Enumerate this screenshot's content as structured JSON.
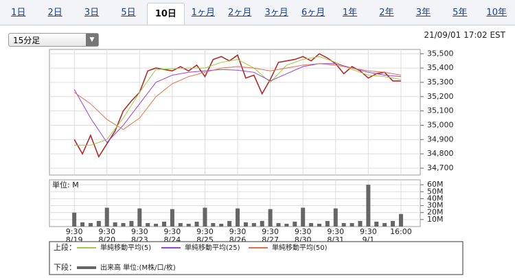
{
  "tabs": [
    "1日",
    "2日",
    "3日",
    "5日",
    "10日",
    "1ヶ月",
    "2ヶ月",
    "3ヶ月",
    "6ヶ月",
    "1年",
    "2年",
    "3年",
    "5年",
    "10年"
  ],
  "selected_tab": 4,
  "dropdown": "15分足",
  "timestamp": "21/09/01 17:02 EST",
  "chart_data": [
    {
      "type": "line",
      "panel_label": "上段：",
      "xlim": [
        -0.76,
        10.59
      ],
      "xticks": [
        {
          "value": 0,
          "label": "9:30"
        },
        {
          "value": 1,
          "label": "9:30"
        },
        {
          "value": 2,
          "label": "9:30"
        },
        {
          "value": 3,
          "label": "9:30"
        },
        {
          "value": 4,
          "label": "9:30"
        },
        {
          "value": 5,
          "label": "9:30"
        },
        {
          "value": 6,
          "label": "9:30"
        },
        {
          "value": 7,
          "label": "9:30"
        },
        {
          "value": 8,
          "label": "9:30"
        },
        {
          "value": 9,
          "label": "9:30"
        },
        {
          "value": 10,
          "label": "16:00"
        }
      ],
      "x_dates": [
        "8/19",
        "8/20",
        "8/23",
        "8/24",
        "8/25",
        "8/26",
        "8/27",
        "8/30",
        "8/31",
        "9/1"
      ],
      "ylim": [
        34652,
        35530
      ],
      "yticks": [
        {
          "value": 34700,
          "label": "34,700"
        },
        {
          "value": 34800,
          "label": "34,800"
        },
        {
          "value": 34900,
          "label": "34,900"
        },
        {
          "value": 35000,
          "label": "35,000"
        },
        {
          "value": 35100,
          "label": "35,100"
        },
        {
          "value": 35200,
          "label": "35,200"
        },
        {
          "value": 35300,
          "label": "35,300"
        },
        {
          "value": 35400,
          "label": "35,400"
        },
        {
          "value": 35500,
          "label": "35,500"
        }
      ],
      "grid": true,
      "price": {
        "color": "#b02a2a",
        "x": [
          0,
          0.25,
          0.5,
          0.75,
          1,
          1.25,
          1.5,
          1.75,
          2,
          2.25,
          2.5,
          2.75,
          3,
          3.25,
          3.5,
          3.75,
          4,
          4.25,
          4.5,
          4.75,
          5,
          5.25,
          5.5,
          5.75,
          6,
          6.25,
          6.5,
          6.75,
          7,
          7.25,
          7.5,
          7.75,
          8,
          8.25,
          8.5,
          8.75,
          9,
          9.25,
          9.5,
          9.75,
          10
        ],
        "values": [
          34900,
          34800,
          34930,
          34780,
          34870,
          34960,
          35100,
          35170,
          35230,
          35380,
          35400,
          35390,
          35380,
          35410,
          35380,
          35420,
          35340,
          35460,
          35480,
          35450,
          35490,
          35330,
          35350,
          35220,
          35320,
          35440,
          35450,
          35460,
          35480,
          35450,
          35500,
          35470,
          35430,
          35360,
          35410,
          35380,
          35330,
          35360,
          35370,
          35310,
          35310
        ]
      },
      "series": [
        {
          "name": "単純移動平均(5)",
          "color": "#9ccc3c",
          "x": [
            0,
            0.5,
            1,
            1.5,
            2,
            2.5,
            3,
            3.5,
            4,
            4.5,
            5,
            5.5,
            6,
            6.5,
            7,
            7.5,
            8,
            8.5,
            9,
            9.5,
            10
          ],
          "values": [
            34860,
            34860,
            34900,
            35050,
            35230,
            35390,
            35395,
            35400,
            35400,
            35440,
            35460,
            35400,
            35300,
            35420,
            35460,
            35480,
            35440,
            35390,
            35350,
            35340,
            35320
          ]
        },
        {
          "name": "単純移動平均(25)",
          "color": "#9b3fd6",
          "x": [
            0,
            0.5,
            1,
            1.5,
            2,
            2.5,
            3,
            3.5,
            4,
            4.5,
            5,
            5.5,
            6,
            6.5,
            7,
            7.5,
            8,
            8.5,
            9,
            9.5,
            10
          ],
          "values": [
            35250,
            35050,
            34880,
            35000,
            35150,
            35300,
            35350,
            35370,
            35380,
            35390,
            35385,
            35370,
            35310,
            35360,
            35410,
            35430,
            35430,
            35400,
            35370,
            35350,
            35340
          ]
        },
        {
          "name": "単純移動平均(50)",
          "color": "#e0704a",
          "x": [
            0,
            0.5,
            1,
            1.5,
            2,
            2.5,
            3,
            3.5,
            4,
            4.5,
            5,
            5.5,
            6,
            6.5,
            7,
            7.5,
            8,
            8.5,
            9,
            9.5,
            10
          ],
          "values": [
            35230,
            35150,
            35040,
            34970,
            35050,
            35200,
            35290,
            35340,
            35370,
            35400,
            35410,
            35400,
            35380,
            35400,
            35420,
            35430,
            35420,
            35400,
            35380,
            35370,
            35350
          ]
        }
      ]
    },
    {
      "type": "bar",
      "panel_label": "下段：",
      "unit_label": "単位: M",
      "ylim": [
        0,
        67
      ],
      "yticks": [
        {
          "value": 10,
          "label": "10M"
        },
        {
          "value": 20,
          "label": "20M"
        },
        {
          "value": 30,
          "label": "30M"
        },
        {
          "value": 40,
          "label": "40M"
        },
        {
          "value": 50,
          "label": "50M"
        },
        {
          "value": 60,
          "label": "60M"
        }
      ],
      "grid": true,
      "series": [
        {
          "name": "出来高 単位:(M株/口/枚)",
          "color": "#666666",
          "x": [
            0,
            0.25,
            0.5,
            0.75,
            1,
            1.25,
            1.5,
            1.75,
            2,
            2.25,
            2.5,
            2.75,
            3,
            3.25,
            3.5,
            3.75,
            4,
            4.25,
            4.5,
            4.75,
            5,
            5.25,
            5.5,
            5.75,
            6,
            6.25,
            6.5,
            6.75,
            7,
            7.25,
            7.5,
            7.75,
            8,
            8.25,
            8.5,
            8.75,
            9,
            9.25,
            9.5,
            9.75,
            10
          ],
          "values": [
            20,
            6,
            5,
            8,
            27,
            6,
            5,
            8,
            26,
            5,
            4,
            7,
            25,
            5,
            4,
            7,
            27,
            5,
            4,
            8,
            26,
            6,
            5,
            8,
            25,
            5,
            4,
            7,
            27,
            5,
            4,
            8,
            26,
            5,
            5,
            8,
            60,
            7,
            5,
            8,
            18
          ]
        }
      ]
    }
  ]
}
